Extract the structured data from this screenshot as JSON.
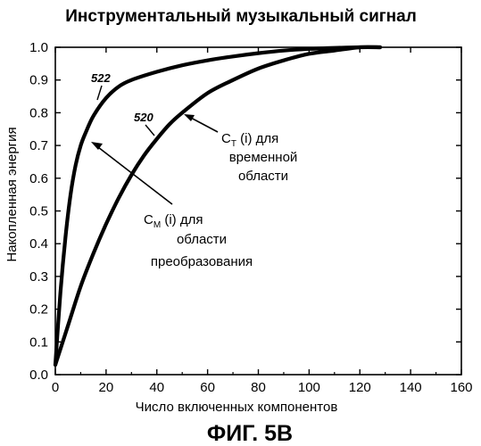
{
  "figure_label": "ФИГ. 5B",
  "chart_data": {
    "type": "line",
    "title": "Инструментальный музыкальный сигнал",
    "xlabel": "Число включенных компонентов",
    "ylabel": "Накопленная энергия",
    "xlim": [
      0,
      160
    ],
    "ylim": [
      0.0,
      1.0
    ],
    "x_ticks": [
      "0",
      "20",
      "40",
      "60",
      "80",
      "100",
      "120",
      "140",
      "160"
    ],
    "y_ticks": [
      "0.0",
      "0.1",
      "0.2",
      "0.3",
      "0.4",
      "0.5",
      "0.6",
      "0.7",
      "0.8",
      "0.9",
      "1.0"
    ],
    "grid": false,
    "series": [
      {
        "name": "522",
        "x": [
          0,
          2,
          4,
          6,
          8,
          10,
          12,
          15,
          20,
          25,
          30,
          40,
          50,
          60,
          70,
          80,
          90,
          100,
          110,
          120,
          128
        ],
        "y": [
          0.03,
          0.25,
          0.42,
          0.55,
          0.64,
          0.7,
          0.74,
          0.79,
          0.845,
          0.88,
          0.9,
          0.925,
          0.945,
          0.96,
          0.972,
          0.982,
          0.99,
          0.995,
          0.998,
          1.0,
          1.0
        ]
      },
      {
        "name": "520",
        "x": [
          0,
          5,
          10,
          15,
          20,
          25,
          30,
          35,
          40,
          45,
          50,
          60,
          70,
          80,
          90,
          100,
          110,
          120,
          128
        ],
        "y": [
          0.03,
          0.15,
          0.27,
          0.37,
          0.46,
          0.54,
          0.61,
          0.67,
          0.72,
          0.765,
          0.8,
          0.86,
          0.9,
          0.935,
          0.96,
          0.98,
          0.99,
          1.0,
          1.0
        ]
      }
    ],
    "annotations": [
      {
        "id": "ct",
        "lines": [
          "C",
          "T",
          " (i) для",
          "временной",
          "области"
        ]
      },
      {
        "id": "cm",
        "lines": [
          "C",
          "M",
          " (i) для",
          "области",
          "преобразования"
        ]
      }
    ]
  }
}
